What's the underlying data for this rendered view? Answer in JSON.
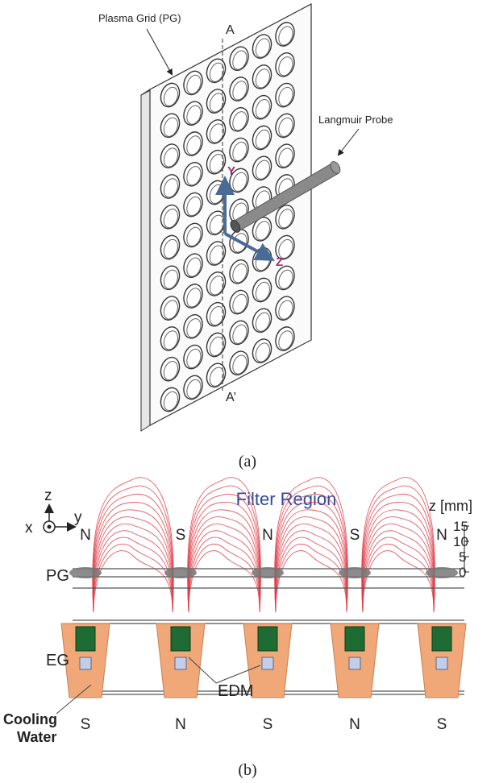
{
  "panel_a": {
    "grid_label": "Plasma Grid (PG)",
    "probe_label": "Langmuir Probe",
    "section_top": "A",
    "section_bottom": "A’",
    "axis_y": "Y",
    "axis_z": "Z",
    "caption": "(a)",
    "colors": {
      "axis": "#4a6b96",
      "axis_text": "#9b2d6e",
      "probe": "#8a8a8a"
    }
  },
  "panel_b": {
    "title": "Filter Region",
    "axis_z": "z",
    "axis_x": "x",
    "axis_y": "y",
    "scale_title": "z [mm]",
    "scale_ticks": [
      "15",
      "10",
      "5",
      "0"
    ],
    "top_poles": [
      "N",
      "S",
      "N",
      "S",
      "N"
    ],
    "bottom_poles": [
      "S",
      "N",
      "S",
      "N",
      "S"
    ],
    "pg_label": "PG",
    "eg_label": "EG",
    "edm_label": "EDM",
    "cooling_label_1": "Cooling",
    "cooling_label_2": "Water",
    "caption": "(b)",
    "colors": {
      "title": "#2b4aa0",
      "field_lines": "#e0404a",
      "magnet": "#1f6b34",
      "electrode": "#f0a878",
      "water": "#c4cde8"
    }
  }
}
